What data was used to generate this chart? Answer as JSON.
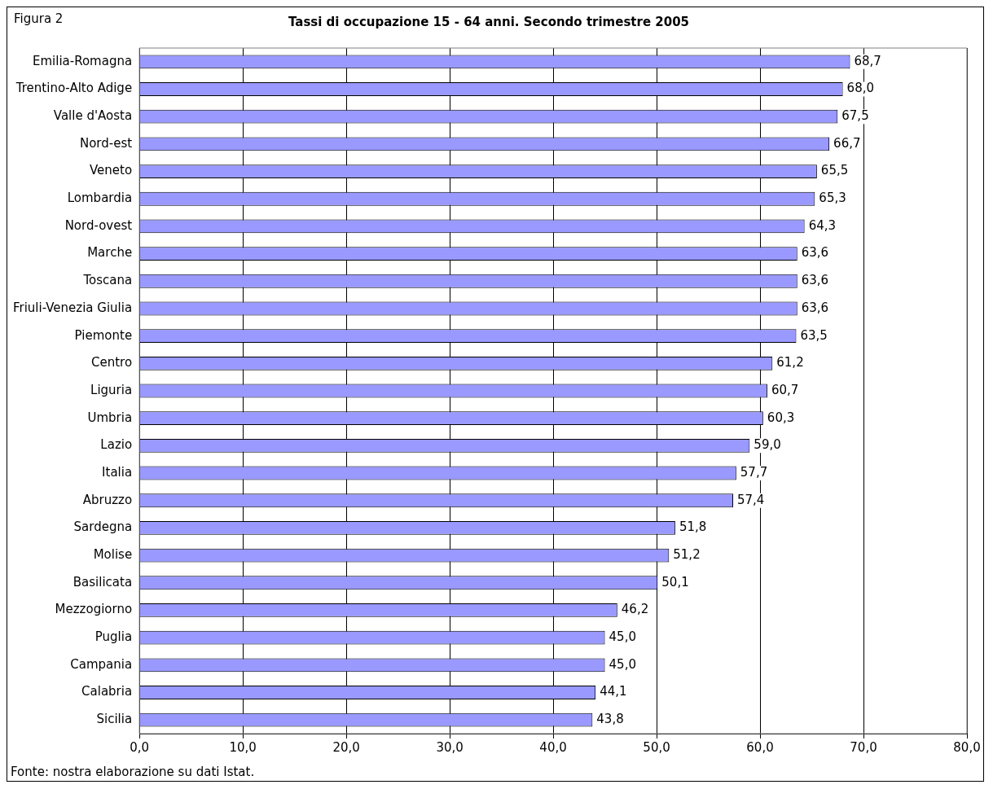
{
  "chart_data": {
    "type": "bar",
    "orientation": "horizontal",
    "title": "Tassi di occupazione 15 - 64 anni. Secondo trimestre 2005",
    "categories": [
      "Emilia-Romagna",
      "Trentino-Alto Adige",
      "Valle d'Aosta",
      "Nord-est",
      "Veneto",
      "Lombardia",
      "Nord-ovest",
      "Marche",
      "Toscana",
      "Friuli-Venezia Giulia",
      "Piemonte",
      "Centro",
      "Liguria",
      "Umbria",
      "Lazio",
      "Italia",
      "Abruzzo",
      "Sardegna",
      "Molise",
      "Basilicata",
      "Mezzogiorno",
      "Puglia",
      "Campania",
      "Calabria",
      "Sicilia"
    ],
    "values": [
      68.7,
      68.0,
      67.5,
      66.7,
      65.5,
      65.3,
      64.3,
      63.6,
      63.6,
      63.6,
      63.5,
      61.2,
      60.7,
      60.3,
      59.0,
      57.7,
      57.4,
      51.8,
      51.2,
      50.1,
      46.2,
      45.0,
      45.0,
      44.1,
      43.8
    ],
    "value_labels": [
      "68,7",
      "68,0",
      "67,5",
      "66,7",
      "65,5",
      "65,3",
      "64,3",
      "63,6",
      "63,6",
      "63,6",
      "63,5",
      "61,2",
      "60,7",
      "60,3",
      "59,0",
      "57,7",
      "57,4",
      "51,8",
      "51,2",
      "50,1",
      "46,2",
      "45,0",
      "45,0",
      "44,1",
      "43,8"
    ],
    "color": "#9999ff",
    "xlim": [
      0,
      80
    ],
    "xticks": [
      {
        "value": 0,
        "label": "0,0"
      },
      {
        "value": 10,
        "label": "10,0"
      },
      {
        "value": 20,
        "label": "20,0"
      },
      {
        "value": 30,
        "label": "30,0"
      },
      {
        "value": 40,
        "label": "40,0"
      },
      {
        "value": 50,
        "label": "50,0"
      },
      {
        "value": 60,
        "label": "60,0"
      },
      {
        "value": 70,
        "label": "70,0"
      },
      {
        "value": 80,
        "label": "80,0"
      }
    ],
    "grid": "x",
    "legend": false,
    "annotations": [
      "Figura 2",
      "Fonte: nostra elaborazione su dati Istat."
    ]
  }
}
